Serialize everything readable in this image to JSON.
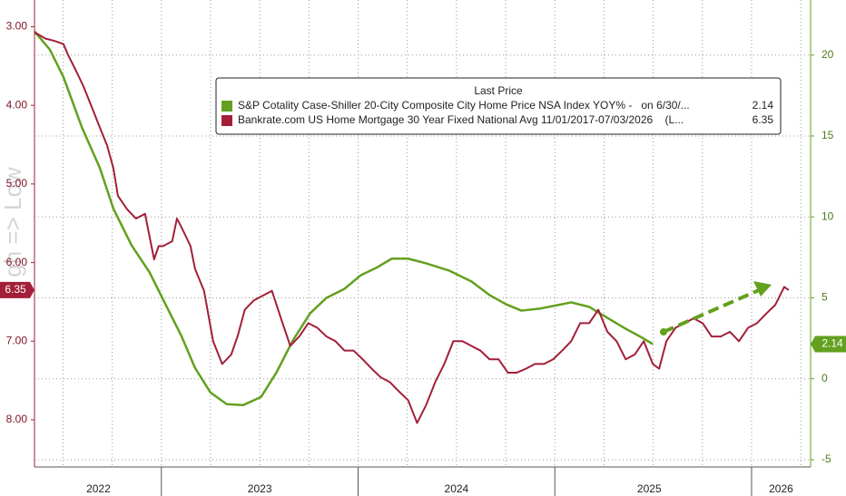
{
  "chart_data": {
    "type": "line",
    "annotations": [
      "gh => Low"
    ],
    "legend_title": "Last Price",
    "xlim": [
      2022.355,
      2026.3
    ],
    "xticks": [
      {
        "value": 2022.68,
        "label": "2022"
      },
      {
        "value": 2023.5,
        "label": "2023"
      },
      {
        "value": 2024.5,
        "label": "2024"
      },
      {
        "value": 2025.48,
        "label": "2025"
      },
      {
        "value": 2026.15,
        "label": "2026"
      }
    ],
    "x_boundaries": [
      2023,
      2024,
      2025,
      2026
    ],
    "xgrid": [
      2022.5,
      2022.75,
      2023,
      2023.25,
      2023.5,
      2023.75,
      2024,
      2024.25,
      2024.5,
      2024.75,
      2025,
      2025.25,
      2025.5,
      2025.75,
      2026,
      2026.25
    ],
    "ylim": [
      8.6,
      2.66
    ],
    "yticks": [
      {
        "value": 3,
        "label": "3.00"
      },
      {
        "value": 4,
        "label": "4.00"
      },
      {
        "value": 5,
        "label": "5.00"
      },
      {
        "value": 6,
        "label": "6.00"
      },
      {
        "value": 7,
        "label": "7.00"
      },
      {
        "value": 8,
        "label": "8.00"
      }
    ],
    "y2lim": [
      -5.45,
      23.4
    ],
    "y2ticks": [
      20,
      15,
      10,
      5,
      0,
      -5
    ],
    "grid": true,
    "series": [
      {
        "name": "S&P Cotality Case-Shiller 20-City Composite City Home Price NSA Index YOY% -   on 6/30/...",
        "color": "#63a01f",
        "axis": "y2",
        "x": [
          2022.355,
          2022.433,
          2022.502,
          2022.595,
          2022.687,
          2022.756,
          2022.848,
          2022.94,
          2023.009,
          2023.102,
          2023.171,
          2023.249,
          2023.332,
          2023.415,
          2023.507,
          2023.585,
          2023.668,
          2023.756,
          2023.839,
          2023.931,
          2024.014,
          2024.092,
          2024.171,
          2024.254,
          2024.346,
          2024.461,
          2024.576,
          2024.668,
          2024.751,
          2024.83,
          2024.922,
          2025.014,
          2025.083,
          2025.175,
          2025.267,
          2025.36,
          2025.429,
          2025.498
        ],
        "values": [
          21.46,
          20.34,
          18.65,
          15.56,
          13.03,
          10.51,
          8.26,
          6.57,
          4.89,
          2.64,
          0.67,
          -0.84,
          -1.57,
          -1.63,
          -1.12,
          0.39,
          2.36,
          4.04,
          5.0,
          5.56,
          6.4,
          6.85,
          7.42,
          7.42,
          7.13,
          6.69,
          6.01,
          5.17,
          4.61,
          4.21,
          4.33,
          4.55,
          4.72,
          4.44,
          3.76,
          3.09,
          2.64,
          2.14
        ]
      },
      {
        "name": "Bankrate.com US Home Mortgage 30 Year Fixed National Avg 11/01/2017-07/03/2026    (L...",
        "color": "#a31f38",
        "axis": "y",
        "x": [
          2022.355,
          2022.41,
          2022.456,
          2022.502,
          2022.526,
          2022.572,
          2022.604,
          2022.641,
          2022.687,
          2022.724,
          2022.756,
          2022.779,
          2022.825,
          2022.871,
          2022.917,
          2022.963,
          2022.986,
          2023.009,
          2023.055,
          2023.079,
          2023.102,
          2023.148,
          2023.171,
          2023.217,
          2023.263,
          2023.309,
          2023.355,
          2023.387,
          2023.424,
          2023.47,
          2023.516,
          2023.562,
          2023.608,
          2023.655,
          2023.701,
          2023.747,
          2023.793,
          2023.839,
          2023.885,
          2023.931,
          2023.977,
          2024.023,
          2024.069,
          2024.115,
          2024.161,
          2024.208,
          2024.254,
          2024.3,
          2024.346,
          2024.392,
          2024.438,
          2024.484,
          2024.53,
          2024.576,
          2024.622,
          2024.668,
          2024.714,
          2024.761,
          2024.807,
          2024.853,
          2024.899,
          2024.945,
          2024.991,
          2025.037,
          2025.083,
          2025.129,
          2025.175,
          2025.221,
          2025.267,
          2025.314,
          2025.36,
          2025.406,
          2025.452,
          2025.498,
          2025.53,
          2025.567,
          2025.613,
          2025.659,
          2025.705,
          2025.751,
          2025.797,
          2025.843,
          2025.89,
          2025.936,
          2025.982,
          2026.028,
          2026.074,
          2026.12,
          2026.166,
          2026.189
        ],
        "values": [
          3.07,
          3.15,
          3.18,
          3.22,
          3.36,
          3.59,
          3.76,
          3.99,
          4.28,
          4.51,
          4.8,
          5.15,
          5.32,
          5.44,
          5.38,
          5.96,
          5.79,
          5.79,
          5.73,
          5.44,
          5.55,
          5.79,
          6.08,
          6.36,
          7.0,
          7.29,
          7.17,
          6.94,
          6.6,
          6.48,
          6.42,
          6.36,
          6.71,
          7.06,
          6.94,
          6.77,
          6.83,
          6.94,
          7.0,
          7.12,
          7.12,
          7.23,
          7.35,
          7.46,
          7.52,
          7.64,
          7.75,
          8.04,
          7.81,
          7.52,
          7.29,
          7.0,
          7.0,
          7.06,
          7.12,
          7.23,
          7.23,
          7.4,
          7.4,
          7.35,
          7.29,
          7.29,
          7.23,
          7.12,
          7.0,
          6.77,
          6.77,
          6.6,
          6.88,
          7.0,
          7.23,
          7.17,
          7.0,
          7.29,
          7.35,
          7.0,
          6.83,
          6.77,
          6.71,
          6.77,
          6.94,
          6.94,
          6.88,
          7.0,
          6.83,
          6.77,
          6.65,
          6.54,
          6.31,
          6.35
        ]
      }
    ]
  }
}
